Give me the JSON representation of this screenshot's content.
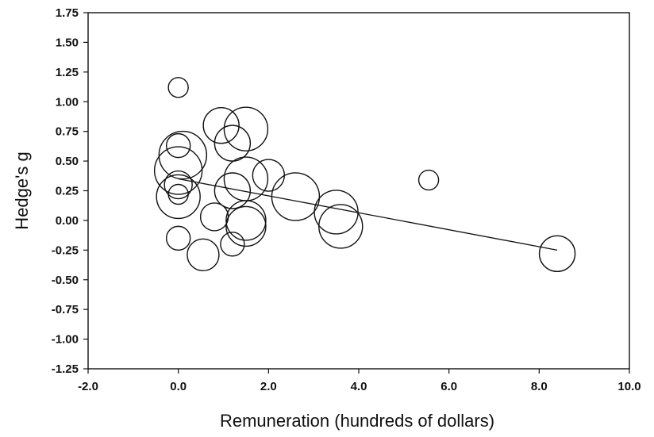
{
  "chart_data": {
    "type": "scatter",
    "title": "",
    "xlabel": "Remuneration  (hundreds of dollars)",
    "ylabel": "Hedge's g",
    "xlim": [
      -2.0,
      10.0
    ],
    "ylim": [
      -1.25,
      1.75
    ],
    "x_ticks": [
      -2.0,
      0.0,
      2.0,
      4.0,
      6.0,
      8.0,
      10.0
    ],
    "x_tick_labels": [
      "-2.0",
      "0.0",
      "2.0",
      "4.0",
      "6.0",
      "8.0",
      "10.0"
    ],
    "y_ticks": [
      1.75,
      1.5,
      1.25,
      1.0,
      0.75,
      0.5,
      0.25,
      0.0,
      -0.25,
      -0.5,
      -0.75,
      -1.0,
      -1.25
    ],
    "y_tick_labels": [
      "1.75",
      "1.50",
      "1.25",
      "1.00",
      "0.75",
      "0.50",
      "0.25",
      "0.00",
      "-0.25",
      "-0.50",
      "-0.75",
      "-1.00",
      "-1.25"
    ],
    "grid": false,
    "points": [
      {
        "x": 0.0,
        "y": 1.12,
        "size": 0.5
      },
      {
        "x": 0.0,
        "y": 0.63,
        "size": 0.6
      },
      {
        "x": 0.1,
        "y": 0.55,
        "size": 1.2
      },
      {
        "x": 0.0,
        "y": 0.42,
        "size": 1.2
      },
      {
        "x": 0.0,
        "y": 0.3,
        "size": 0.7
      },
      {
        "x": 0.0,
        "y": 0.22,
        "size": 0.5
      },
      {
        "x": 0.0,
        "y": 0.2,
        "size": 1.1
      },
      {
        "x": 0.0,
        "y": -0.15,
        "size": 0.6
      },
      {
        "x": 0.55,
        "y": -0.29,
        "size": 0.8
      },
      {
        "x": 0.95,
        "y": 0.8,
        "size": 0.9
      },
      {
        "x": 1.2,
        "y": 0.65,
        "size": 0.9
      },
      {
        "x": 1.5,
        "y": 0.77,
        "size": 1.1
      },
      {
        "x": 0.8,
        "y": 0.03,
        "size": 0.7
      },
      {
        "x": 1.2,
        "y": 0.25,
        "size": 0.9
      },
      {
        "x": 1.5,
        "y": 0.35,
        "size": 1.1
      },
      {
        "x": 2.0,
        "y": 0.38,
        "size": 0.8
      },
      {
        "x": 1.2,
        "y": -0.2,
        "size": 0.6
      },
      {
        "x": 1.5,
        "y": 0.0,
        "size": 1.0
      },
      {
        "x": 1.5,
        "y": -0.05,
        "size": 1.0
      },
      {
        "x": 2.6,
        "y": 0.2,
        "size": 1.2
      },
      {
        "x": 3.5,
        "y": 0.07,
        "size": 1.1
      },
      {
        "x": 3.6,
        "y": -0.05,
        "size": 1.1
      },
      {
        "x": 5.55,
        "y": 0.34,
        "size": 0.5
      },
      {
        "x": 8.4,
        "y": -0.28,
        "size": 0.9
      }
    ],
    "regression_line": {
      "x": [
        0.0,
        8.4
      ],
      "y": [
        0.35,
        -0.25
      ]
    }
  }
}
